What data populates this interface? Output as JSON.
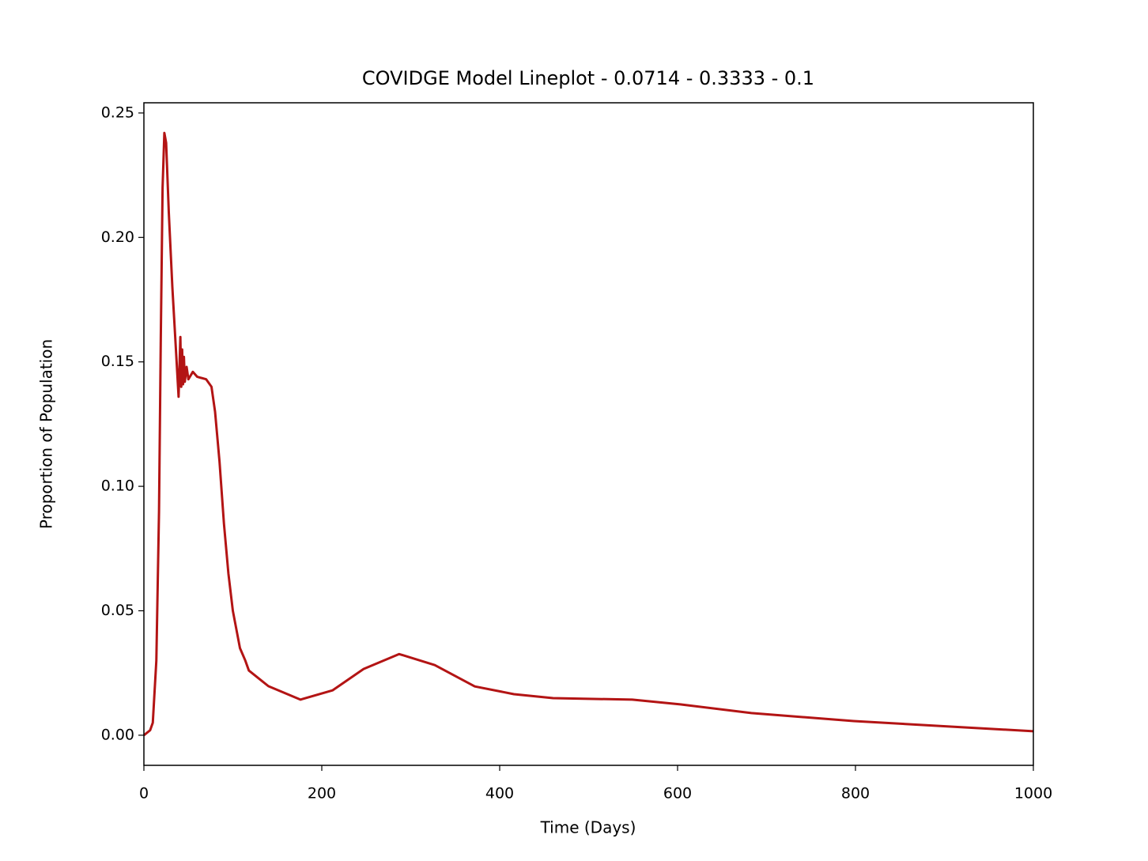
{
  "chart_data": {
    "type": "line",
    "title": "COVIDGE Model Lineplot - 0.0714 - 0.3333 - 0.1",
    "x_label": "Time (Days)",
    "y_label": "Proportion of Population",
    "color": "#b31414",
    "x": [
      0,
      7,
      10,
      14,
      17,
      19,
      21,
      23,
      25,
      28,
      32,
      36,
      39,
      41,
      42,
      43,
      44,
      45,
      46,
      48,
      50,
      55,
      60,
      70,
      76,
      80,
      85,
      90,
      95,
      100,
      108,
      114,
      118,
      132,
      140,
      176,
      212,
      247,
      287,
      327,
      372,
      416,
      460,
      549,
      603,
      683,
      798,
      905,
      1000
    ],
    "values": [
      0,
      0.002,
      0.005,
      0.03,
      0.09,
      0.16,
      0.22,
      0.242,
      0.238,
      0.21,
      0.18,
      0.155,
      0.136,
      0.16,
      0.14,
      0.155,
      0.141,
      0.152,
      0.142,
      0.148,
      0.143,
      0.146,
      0.144,
      0.143,
      0.14,
      0.13,
      0.11,
      0.085,
      0.065,
      0.05,
      0.035,
      0.03,
      0.026,
      0.022,
      0.0197,
      0.0143,
      0.018,
      0.0266,
      0.0326,
      0.0282,
      0.0196,
      0.0165,
      0.0149,
      0.0143,
      0.0124,
      0.0089,
      0.0057,
      0.0035,
      0.0016
    ],
    "xlim": [
      0,
      1000
    ],
    "xticks": [
      0,
      200,
      400,
      600,
      800,
      1000
    ],
    "ylim": [
      -0.0121,
      0.2541
    ],
    "yticks": [
      {
        "value": 0,
        "label": "0.00"
      },
      0.05,
      {
        "value": 0.1,
        "label": "0.10"
      },
      0.15,
      {
        "value": 0.2,
        "label": "0.20"
      },
      0.25
    ]
  }
}
